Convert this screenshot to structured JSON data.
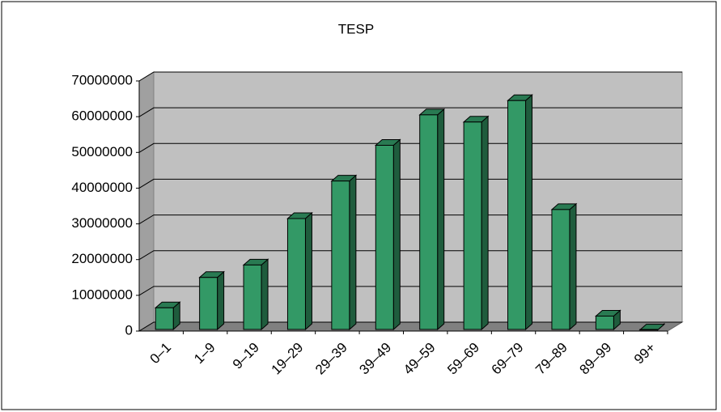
{
  "chart_data": {
    "type": "bar3d",
    "title": "TESP",
    "categories": [
      "0–1",
      "1–9",
      "9–19",
      "19–29",
      "29–39",
      "39–49",
      "49–59",
      "59–69",
      "69–79",
      "79–89",
      "89–99",
      "99+"
    ],
    "values": [
      6500000,
      15000000,
      18500000,
      31500000,
      42000000,
      52000000,
      60500000,
      58500000,
      64500000,
      34000000,
      4200000,
      300000
    ],
    "color": "#339966",
    "ylim": [
      0,
      70000000
    ],
    "yticks": [
      0,
      10000000,
      20000000,
      30000000,
      40000000,
      50000000,
      60000000,
      70000000
    ],
    "grid": true
  }
}
